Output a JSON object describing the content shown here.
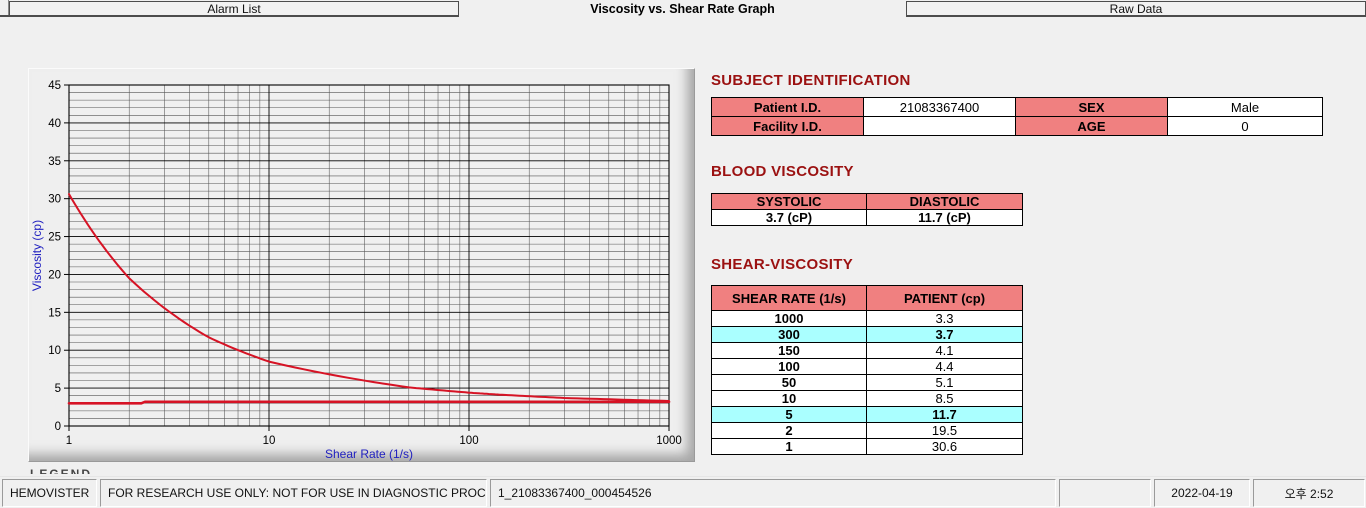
{
  "tabs": {
    "alarm_list": "Alarm List",
    "graph": "Viscosity vs. Shear Rate Graph",
    "raw_data": "Raw Data"
  },
  "chart_data": {
    "type": "line",
    "xscale": "log",
    "xlim": [
      1,
      1000
    ],
    "ylim": [
      0,
      45
    ],
    "xlabel": "Shear Rate (1/s)",
    "ylabel": "Viscosity (cp)",
    "x_ticks": [
      1,
      10,
      100,
      1000
    ],
    "y_tick_step": 5,
    "y_minor_step": 1,
    "grid": true,
    "series": [
      {
        "name": "patient-viscosity-curve",
        "x": [
          1,
          2,
          5,
          10,
          50,
          100,
          150,
          300,
          1000
        ],
        "y": [
          30.6,
          19.5,
          11.7,
          8.5,
          5.1,
          4.4,
          4.1,
          3.7,
          3.3
        ],
        "smooth": true,
        "width": 2
      },
      {
        "name": "reference-line",
        "x": [
          1,
          2.3,
          2.4,
          1000
        ],
        "y": [
          3.0,
          3.0,
          3.2,
          3.2
        ],
        "smooth": false,
        "width": 2.6
      }
    ]
  },
  "subject_identification": {
    "title": "SUBJECT IDENTIFICATION",
    "rows": [
      [
        "Patient I.D.",
        "21083367400",
        "SEX",
        "Male"
      ],
      [
        "Facility I.D.",
        "",
        "AGE",
        "0"
      ]
    ]
  },
  "blood_viscosity": {
    "title": "BLOOD VISCOSITY",
    "headers": [
      "SYSTOLIC",
      "DIASTOLIC"
    ],
    "values": [
      "3.7 (cP)",
      "11.7 (cP)"
    ]
  },
  "shear_viscosity": {
    "title": "SHEAR-VISCOSITY",
    "headers": [
      "SHEAR RATE (1/s)",
      "PATIENT (cp)"
    ],
    "rows": [
      {
        "rate": "1000",
        "value": "3.3",
        "highlight": false
      },
      {
        "rate": "300",
        "value": "3.7",
        "highlight": true
      },
      {
        "rate": "150",
        "value": "4.1",
        "highlight": false
      },
      {
        "rate": "100",
        "value": "4.4",
        "highlight": false
      },
      {
        "rate": "50",
        "value": "5.1",
        "highlight": false
      },
      {
        "rate": "10",
        "value": "8.5",
        "highlight": false
      },
      {
        "rate": "5",
        "value": "11.7",
        "highlight": true
      },
      {
        "rate": "2",
        "value": "19.5",
        "highlight": false
      },
      {
        "rate": "1",
        "value": "30.6",
        "highlight": false
      }
    ]
  },
  "clipped_text": "LEGEND",
  "status_bar": {
    "app_name": "HEMOVISTER",
    "disclaimer": "FOR RESEARCH USE ONLY: NOT FOR USE IN DIAGNOSTIC PROCEDURES",
    "record_id": "1_21083367400_000454526",
    "date": "2022-04-19",
    "time": "오후 2:52"
  },
  "colors": {
    "table_header_pink": "#f08080",
    "highlight_cyan": "#aaffff",
    "section_maroon": "#9b1111",
    "curve_red": "#d61325",
    "axis_label_blue": "#2121c0"
  }
}
